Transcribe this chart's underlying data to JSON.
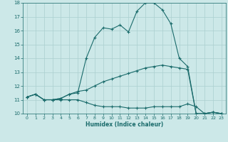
{
  "xlabel": "Humidex (Indice chaleur)",
  "bg_color": "#cce8e8",
  "grid_color": "#aacfcf",
  "line_color": "#1a6b6b",
  "xlim": [
    -0.5,
    23.5
  ],
  "ylim": [
    10,
    18
  ],
  "yticks": [
    10,
    11,
    12,
    13,
    14,
    15,
    16,
    17,
    18
  ],
  "xticks": [
    0,
    1,
    2,
    3,
    4,
    5,
    6,
    7,
    8,
    9,
    10,
    11,
    12,
    13,
    14,
    15,
    16,
    17,
    18,
    19,
    20,
    21,
    22,
    23
  ],
  "curves": [
    {
      "x": [
        0,
        1,
        2,
        3,
        4,
        5,
        6,
        7,
        8,
        9,
        10,
        11,
        12,
        13,
        14,
        15,
        16,
        17,
        18,
        19,
        20,
        21,
        22,
        23
      ],
      "y": [
        11.2,
        11.4,
        11.0,
        11.0,
        11.1,
        11.4,
        11.5,
        14.0,
        15.5,
        16.2,
        16.1,
        16.4,
        15.9,
        17.4,
        18.0,
        18.0,
        17.5,
        16.5,
        14.0,
        13.4,
        10.0,
        10.0,
        10.1,
        10.0
      ]
    },
    {
      "x": [
        0,
        1,
        2,
        3,
        4,
        5,
        6,
        7,
        8,
        9,
        10,
        11,
        12,
        13,
        14,
        15,
        16,
        17,
        18,
        19,
        20,
        21,
        22,
        23
      ],
      "y": [
        11.2,
        11.4,
        11.0,
        11.0,
        11.1,
        11.4,
        11.6,
        11.7,
        12.0,
        12.3,
        12.5,
        12.7,
        12.9,
        13.1,
        13.3,
        13.4,
        13.5,
        13.4,
        13.3,
        13.2,
        10.0,
        10.0,
        10.1,
        10.0
      ]
    },
    {
      "x": [
        0,
        1,
        2,
        3,
        4,
        5,
        6,
        7,
        8,
        9,
        10,
        11,
        12,
        13,
        14,
        15,
        16,
        17,
        18,
        19,
        20,
        21,
        22,
        23
      ],
      "y": [
        11.2,
        11.4,
        11.0,
        11.0,
        11.0,
        11.0,
        11.0,
        10.8,
        10.6,
        10.5,
        10.5,
        10.5,
        10.4,
        10.4,
        10.4,
        10.5,
        10.5,
        10.5,
        10.5,
        10.7,
        10.5,
        10.0,
        10.1,
        10.0
      ]
    }
  ]
}
